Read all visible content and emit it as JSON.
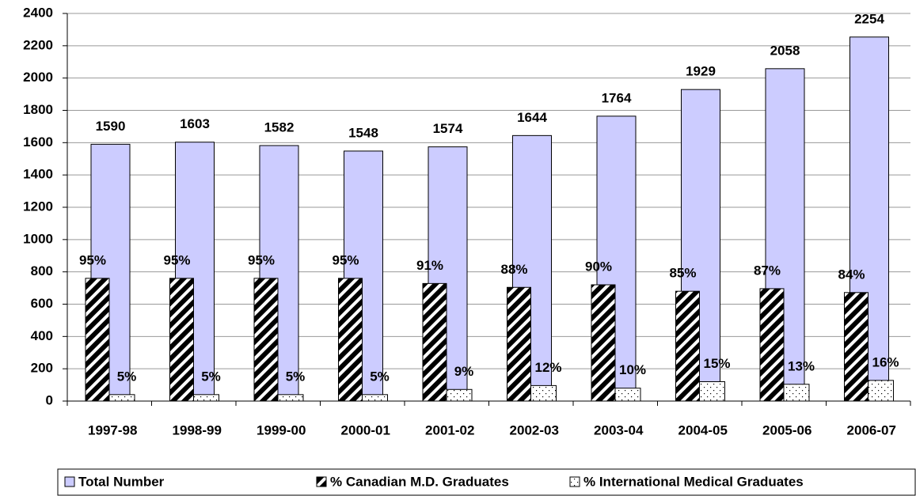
{
  "chart_data": {
    "type": "bar",
    "categories": [
      "1997-98",
      "1998-99",
      "1999-00",
      "2000-01",
      "2001-02",
      "2002-03",
      "2003-04",
      "2004-05",
      "2005-06",
      "2006-07"
    ],
    "series": [
      {
        "name": "Total Number",
        "color": "#ccccff",
        "values": [
          1590,
          1603,
          1582,
          1548,
          1574,
          1644,
          1764,
          1929,
          2058,
          2254
        ]
      },
      {
        "name": "% Canadian M.D. Graduates",
        "color": "#000000",
        "axis": "y2",
        "values": [
          95,
          95,
          95,
          95,
          91,
          88,
          90,
          85,
          87,
          84
        ],
        "value_labels": [
          "95%",
          "95%",
          "95%",
          "95%",
          "91%",
          "88%",
          "90%",
          "85%",
          "87%",
          "84%"
        ]
      },
      {
        "name": "% International Medical Graduates",
        "color": "#ffffff",
        "axis": "y2",
        "values": [
          5,
          5,
          5,
          5,
          9,
          12,
          10,
          15,
          13,
          16
        ],
        "value_labels": [
          "5%",
          "5%",
          "5%",
          "5%",
          "9%",
          "12%",
          "10%",
          "15%",
          "13%",
          "16%"
        ]
      }
    ],
    "ylim": [
      0,
      2400
    ],
    "yticks": [
      0,
      200,
      400,
      600,
      800,
      1000,
      1200,
      1400,
      1600,
      1800,
      2000,
      2200,
      2400
    ],
    "y2lim": [
      0,
      300
    ],
    "grid": true,
    "legend": "bottom"
  }
}
